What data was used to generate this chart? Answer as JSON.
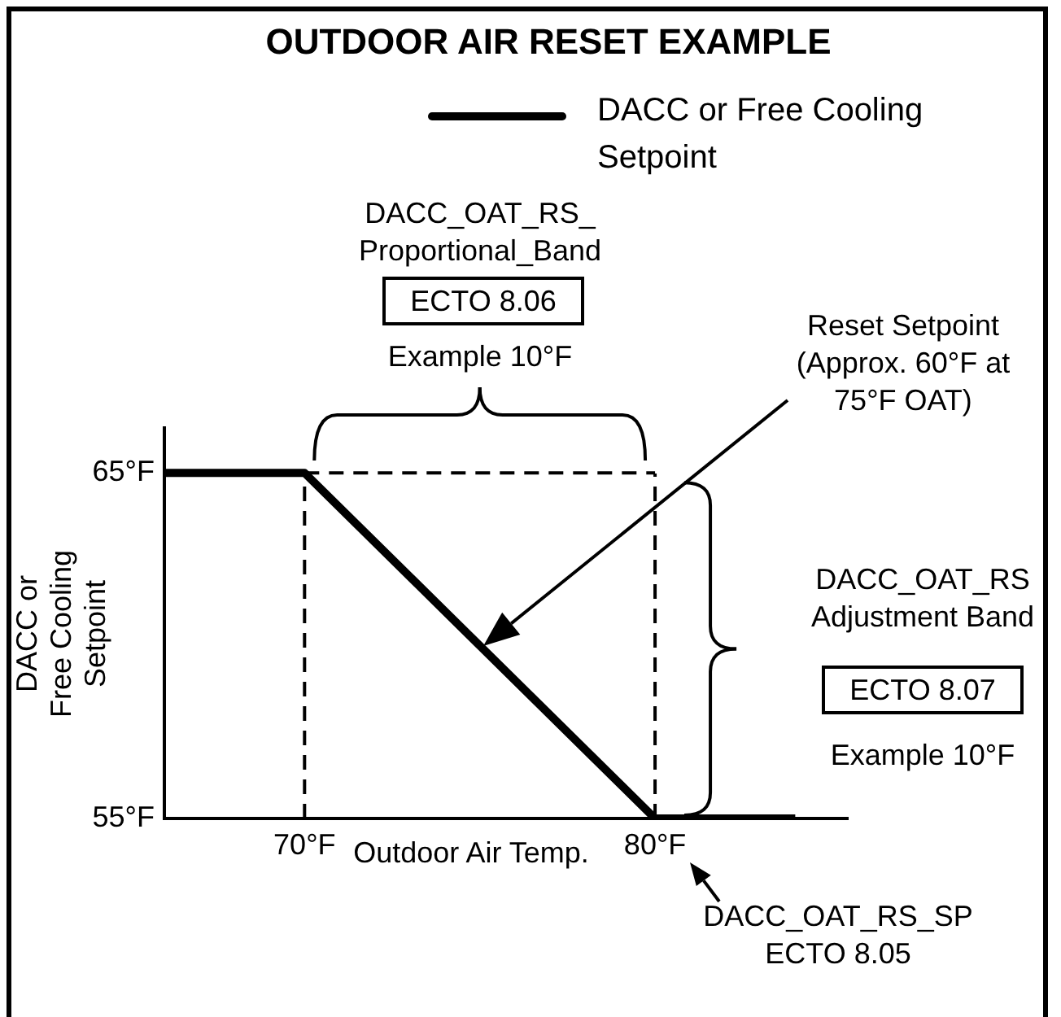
{
  "chart_data": {
    "type": "line",
    "title": "OUTDOOR AIR RESET EXAMPLE",
    "xlabel": "Outdoor Air Temp.",
    "ylabel": "DACC or Free Cooling Setpoint",
    "series": [
      {
        "name": "DACC or Free Cooling Setpoint",
        "color": "#000000",
        "x": [
          66,
          70,
          80,
          84
        ],
        "values": [
          65,
          65,
          55,
          55
        ]
      },
      {
        "type": "line",
        "line_style": "dashed",
        "color": "#000000",
        "x": [
          70,
          80
        ],
        "values": [
          65,
          65
        ]
      }
    ],
    "xlim": [
      66,
      85.5
    ],
    "ylim": [
      55,
      66.3
    ],
    "xticks": [
      {
        "value": 70,
        "label": "70°F"
      },
      {
        "value": 80,
        "label": "80°F"
      }
    ],
    "yticks": [
      {
        "value": 55,
        "label": "55°F"
      },
      {
        "value": 65,
        "label": "65°F"
      }
    ],
    "ref_lines": [
      {
        "axis": "x",
        "value": 70,
        "color": "#000000",
        "line_style": "dashed"
      },
      {
        "axis": "x",
        "value": 80,
        "color": "#000000",
        "line_style": "dashed"
      }
    ],
    "annotations": [
      "DACC_OAT_RS_ Proportional_Band",
      "ECTO 8.06",
      "Example 10°F",
      "Reset Setpoint (Approx. 60°F at 75°F OAT)",
      "DACC_OAT_RS Adjustment Band",
      "ECTO 8.07",
      "Example 10°F",
      "DACC_OAT_RS_SP ECTO 8.05"
    ],
    "grid": false,
    "legend": "top right",
    "marker": "none"
  }
}
